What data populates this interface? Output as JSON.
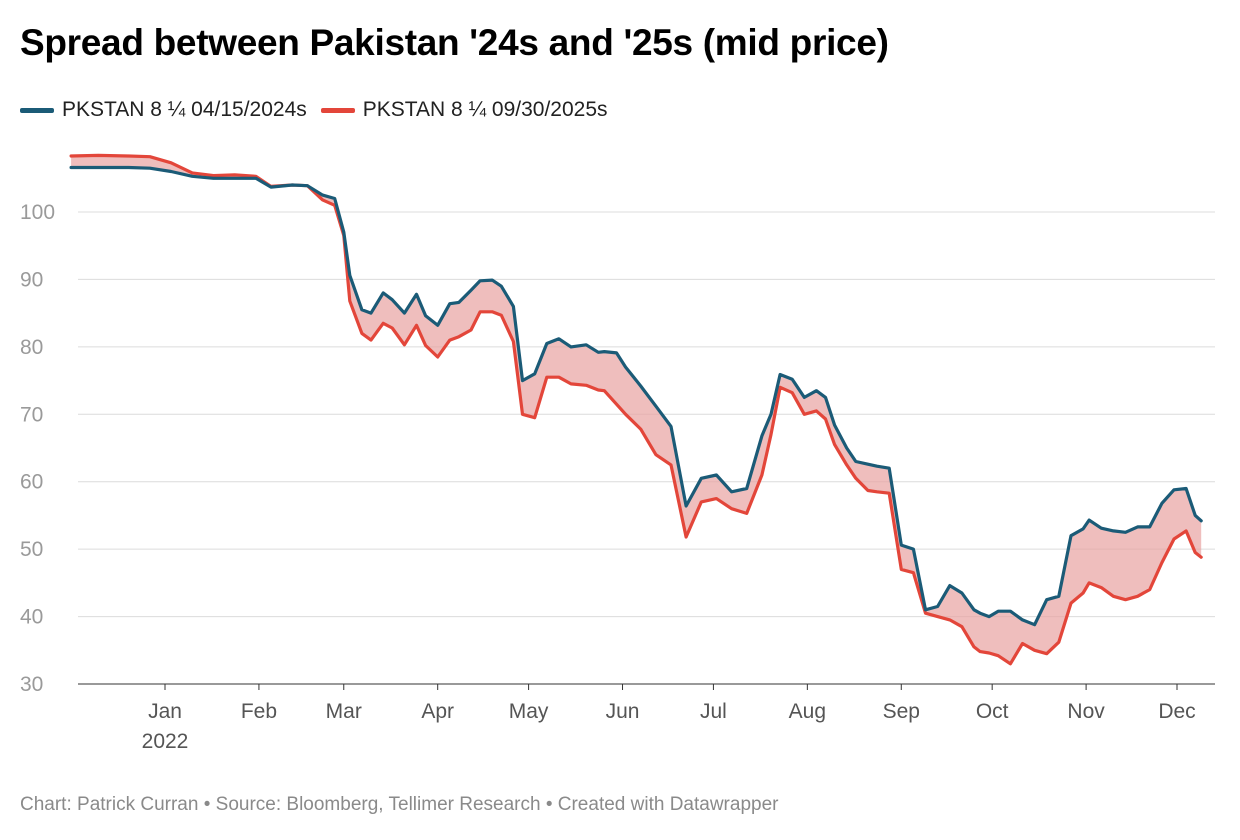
{
  "title": "Spread between Pakistan '24s and '25s (mid price)",
  "footer": "Chart: Patrick Curran • Source: Bloomberg, Tellimer Research • Created with Datawrapper",
  "colors": {
    "series_2024": "#1b5b77",
    "series_2025": "#e3463a",
    "fill": "#e8a3a1"
  },
  "chart_data": {
    "type": "area",
    "title": "Spread between Pakistan '24s and '25s (mid price)",
    "xlabel": "",
    "ylabel": "",
    "ylim": [
      30,
      110
    ],
    "yticks": [
      30,
      40,
      50,
      60,
      70,
      80,
      90,
      100
    ],
    "grid": true,
    "legend_position": "top-left",
    "x_tick_labels": [
      {
        "label": "Jan",
        "sublabel": "2022",
        "date": "2022-01-01"
      },
      {
        "label": "Feb",
        "sublabel": "",
        "date": "2022-02-01"
      },
      {
        "label": "Mar",
        "sublabel": "",
        "date": "2022-03-01"
      },
      {
        "label": "Apr",
        "sublabel": "",
        "date": "2022-04-01"
      },
      {
        "label": "May",
        "sublabel": "",
        "date": "2022-05-01"
      },
      {
        "label": "Jun",
        "sublabel": "",
        "date": "2022-06-01"
      },
      {
        "label": "Jul",
        "sublabel": "",
        "date": "2022-07-01"
      },
      {
        "label": "Aug",
        "sublabel": "",
        "date": "2022-08-01"
      },
      {
        "label": "Sep",
        "sublabel": "",
        "date": "2022-09-01"
      },
      {
        "label": "Oct",
        "sublabel": "",
        "date": "2022-10-01"
      },
      {
        "label": "Nov",
        "sublabel": "",
        "date": "2022-11-01"
      },
      {
        "label": "Dec",
        "sublabel": "",
        "date": "2022-12-01"
      }
    ],
    "x": [
      "2021-12-01",
      "2021-12-10",
      "2021-12-20",
      "2021-12-27",
      "2022-01-03",
      "2022-01-10",
      "2022-01-17",
      "2022-01-24",
      "2022-01-31",
      "2022-02-05",
      "2022-02-12",
      "2022-02-17",
      "2022-02-22",
      "2022-02-26",
      "2022-03-01",
      "2022-03-03",
      "2022-03-07",
      "2022-03-10",
      "2022-03-14",
      "2022-03-17",
      "2022-03-21",
      "2022-03-25",
      "2022-03-28",
      "2022-04-01",
      "2022-04-05",
      "2022-04-08",
      "2022-04-12",
      "2022-04-15",
      "2022-04-19",
      "2022-04-22",
      "2022-04-26",
      "2022-04-29",
      "2022-05-03",
      "2022-05-07",
      "2022-05-11",
      "2022-05-15",
      "2022-05-20",
      "2022-05-24",
      "2022-05-26",
      "2022-05-30",
      "2022-06-02",
      "2022-06-07",
      "2022-06-12",
      "2022-06-17",
      "2022-06-22",
      "2022-06-27",
      "2022-07-02",
      "2022-07-07",
      "2022-07-12",
      "2022-07-17",
      "2022-07-20",
      "2022-07-23",
      "2022-07-27",
      "2022-07-31",
      "2022-08-04",
      "2022-08-07",
      "2022-08-10",
      "2022-08-14",
      "2022-08-17",
      "2022-08-21",
      "2022-08-24",
      "2022-08-28",
      "2022-09-01",
      "2022-09-05",
      "2022-09-09",
      "2022-09-13",
      "2022-09-17",
      "2022-09-21",
      "2022-09-25",
      "2022-09-27",
      "2022-09-30",
      "2022-10-03",
      "2022-10-07",
      "2022-10-11",
      "2022-10-15",
      "2022-10-19",
      "2022-10-23",
      "2022-10-27",
      "2022-10-31",
      "2022-11-02",
      "2022-11-06",
      "2022-11-10",
      "2022-11-14",
      "2022-11-18",
      "2022-11-22",
      "2022-11-26",
      "2022-11-30",
      "2022-12-04",
      "2022-12-07",
      "2022-12-09"
    ],
    "series": [
      {
        "name": "PKSTAN 8 ¼ 04/15/2024s",
        "values": [
          106.6,
          106.6,
          106.6,
          106.5,
          106.0,
          105.3,
          105.0,
          105.0,
          105.0,
          103.7,
          104.0,
          103.9,
          102.5,
          102.0,
          97.0,
          90.6,
          85.5,
          85.0,
          88.0,
          87.0,
          85.0,
          87.8,
          84.6,
          83.2,
          86.4,
          86.6,
          88.4,
          89.8,
          89.9,
          89.0,
          86.0,
          75.0,
          76.0,
          80.5,
          81.2,
          80.0,
          80.3,
          79.2,
          79.3,
          79.1,
          77.0,
          74.2,
          71.2,
          68.2,
          56.4,
          60.5,
          61.0,
          58.5,
          59.0,
          66.8,
          70.0,
          75.9,
          75.2,
          72.5,
          73.5,
          72.5,
          68.4,
          65.0,
          63.0,
          62.6,
          62.3,
          62.0,
          50.6,
          50.0,
          41.0,
          41.5,
          44.6,
          43.5,
          41.0,
          40.5,
          40.0,
          40.8,
          40.8,
          39.5,
          38.8,
          42.5,
          43.0,
          52.0,
          53.0,
          54.3,
          53.1,
          52.7,
          52.5,
          53.3,
          53.3,
          56.8,
          58.8,
          59.0,
          55.0,
          54.2
        ]
      },
      {
        "name": "PKSTAN 8 ¼ 09/30/2025s",
        "values": [
          108.3,
          108.4,
          108.3,
          108.2,
          107.3,
          105.8,
          105.4,
          105.5,
          105.3,
          103.8,
          104.0,
          103.9,
          101.8,
          101.0,
          96.5,
          86.8,
          82.0,
          81.0,
          83.5,
          82.8,
          80.3,
          83.2,
          80.2,
          78.5,
          81.0,
          81.5,
          82.5,
          85.2,
          85.2,
          84.7,
          80.8,
          70.0,
          69.5,
          75.5,
          75.5,
          74.5,
          74.3,
          73.6,
          73.5,
          71.5,
          70.0,
          67.8,
          64.0,
          62.5,
          51.8,
          57.0,
          57.5,
          56.0,
          55.3,
          61.0,
          67.0,
          74.0,
          73.2,
          70.0,
          70.5,
          69.3,
          65.5,
          62.5,
          60.5,
          58.7,
          58.5,
          58.3,
          47.0,
          46.5,
          40.5,
          40.0,
          39.5,
          38.5,
          35.5,
          34.8,
          34.6,
          34.2,
          33.0,
          36.0,
          35.0,
          34.5,
          36.2,
          42.0,
          43.5,
          45.0,
          44.3,
          43.0,
          42.5,
          43.0,
          44.0,
          48.0,
          51.5,
          52.7,
          49.5,
          48.8
        ]
      }
    ]
  }
}
